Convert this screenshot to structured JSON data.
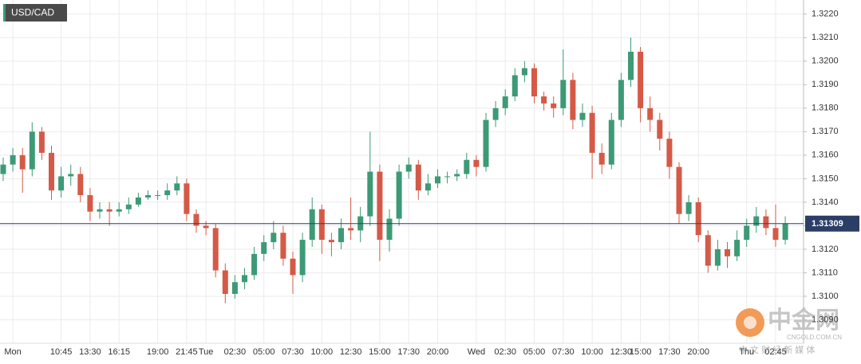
{
  "chart_data": {
    "type": "candlestick",
    "title": "USD/CAD",
    "categories": [
      null,
      "Mon",
      null,
      null,
      null,
      null,
      "10:45",
      null,
      null,
      "13:30",
      null,
      null,
      "16:15",
      null,
      null,
      null,
      "19:00",
      null,
      null,
      "21:45",
      null,
      "Tue",
      null,
      null,
      "02:30",
      null,
      null,
      "05:00",
      null,
      null,
      "07:30",
      null,
      null,
      "10:00",
      null,
      null,
      "12:30",
      null,
      null,
      "15:00",
      null,
      null,
      "17:30",
      null,
      null,
      "20:00",
      null,
      null,
      null,
      "Wed",
      null,
      null,
      "02:30",
      null,
      null,
      "05:00",
      null,
      null,
      "07:30",
      null,
      null,
      "10:00",
      null,
      null,
      "12:30",
      null,
      "15:00",
      null,
      null,
      "17:30",
      null,
      null,
      "20:00",
      null,
      null,
      null,
      null,
      "Thu",
      null,
      null,
      "02:45",
      null
    ],
    "open": [
      1.3152,
      1.3156,
      1.316,
      1.3154,
      1.317,
      1.3161,
      1.3145,
      1.3151,
      1.3152,
      1.3143,
      1.3136,
      1.3137,
      1.3136,
      1.3137,
      1.3139,
      1.3142,
      1.3143,
      1.3143,
      1.3145,
      1.3148,
      1.3135,
      1.313,
      1.3129,
      1.3111,
      1.3101,
      1.3106,
      1.3109,
      1.3118,
      1.3123,
      1.3127,
      1.3116,
      1.3109,
      1.3124,
      1.3137,
      1.3124,
      1.3123,
      1.3129,
      1.3128,
      1.3134,
      1.3153,
      1.3124,
      1.3133,
      1.3153,
      1.3156,
      1.3145,
      1.3148,
      1.3151,
      1.3151,
      1.3152,
      1.3158,
      1.3155,
      1.3175,
      1.318,
      1.3185,
      1.3194,
      1.3197,
      1.3185,
      1.3182,
      1.318,
      1.3192,
      1.3175,
      1.3178,
      1.3161,
      1.3156,
      1.3175,
      1.3192,
      1.3204,
      1.318,
      1.3175,
      1.3167,
      1.3155,
      1.3135,
      1.314,
      1.3126,
      1.3113,
      1.312,
      1.3117,
      1.3124,
      1.313,
      1.3134,
      1.3129,
      1.3124
    ],
    "high": [
      1.3159,
      1.3163,
      1.3163,
      1.3174,
      1.3172,
      1.3164,
      1.3155,
      1.3156,
      1.3155,
      1.3146,
      1.314,
      1.314,
      1.314,
      1.3142,
      1.3144,
      1.3145,
      1.3145,
      1.3148,
      1.3151,
      1.315,
      1.3137,
      1.3132,
      1.3131,
      1.3114,
      1.3109,
      1.3112,
      1.3121,
      1.3126,
      1.3132,
      1.313,
      1.3119,
      1.3127,
      1.3142,
      1.3139,
      1.3127,
      1.3133,
      1.3142,
      1.3138,
      1.317,
      1.3156,
      1.3137,
      1.3156,
      1.3159,
      1.3158,
      1.3152,
      1.3154,
      1.3153,
      1.3154,
      1.3161,
      1.316,
      1.3178,
      1.3183,
      1.3188,
      1.3197,
      1.32,
      1.3199,
      1.3187,
      1.3185,
      1.3205,
      1.3195,
      1.3182,
      1.3181,
      1.3165,
      1.3178,
      1.3195,
      1.321,
      1.3206,
      1.3185,
      1.3178,
      1.317,
      1.3157,
      1.3143,
      1.3142,
      1.3128,
      1.3124,
      1.3123,
      1.3128,
      1.3133,
      1.3138,
      1.3137,
      1.3139,
      1.3134
    ],
    "low": [
      1.3149,
      1.3153,
      1.3144,
      1.3151,
      1.3158,
      1.3141,
      1.3142,
      1.3147,
      1.314,
      1.3132,
      1.3133,
      1.313,
      1.3134,
      1.3135,
      1.3138,
      1.3141,
      1.3141,
      1.3141,
      1.3143,
      1.3132,
      1.3127,
      1.3126,
      1.3108,
      1.3097,
      1.3099,
      1.3103,
      1.3107,
      1.3115,
      1.312,
      1.3113,
      1.3101,
      1.3106,
      1.3121,
      1.3118,
      1.3117,
      1.312,
      1.3124,
      1.3123,
      1.313,
      1.3115,
      1.3119,
      1.313,
      1.315,
      1.3141,
      1.3143,
      1.3146,
      1.3148,
      1.3149,
      1.315,
      1.3151,
      1.3153,
      1.3172,
      1.3177,
      1.3183,
      1.3191,
      1.3182,
      1.3179,
      1.3176,
      1.3177,
      1.3171,
      1.3172,
      1.315,
      1.3152,
      1.3154,
      1.3172,
      1.3189,
      1.3174,
      1.317,
      1.3162,
      1.315,
      1.3131,
      1.3132,
      1.3123,
      1.311,
      1.3111,
      1.3112,
      1.3115,
      1.3121,
      1.3127,
      1.3126,
      1.3121,
      1.3122
    ],
    "close": [
      1.3156,
      1.316,
      1.3154,
      1.317,
      1.3161,
      1.3145,
      1.3151,
      1.3152,
      1.3143,
      1.3136,
      1.3137,
      1.3136,
      1.3137,
      1.3139,
      1.3142,
      1.3143,
      1.3143,
      1.3145,
      1.3148,
      1.3135,
      1.313,
      1.3129,
      1.3111,
      1.3101,
      1.3106,
      1.3109,
      1.3118,
      1.3123,
      1.3127,
      1.3116,
      1.3109,
      1.3124,
      1.3137,
      1.3124,
      1.3123,
      1.3129,
      1.3128,
      1.3134,
      1.3153,
      1.3124,
      1.3133,
      1.3153,
      1.3156,
      1.3145,
      1.3148,
      1.3151,
      1.3151,
      1.3152,
      1.3158,
      1.3155,
      1.3175,
      1.318,
      1.3185,
      1.3194,
      1.3197,
      1.3185,
      1.3182,
      1.318,
      1.3192,
      1.3175,
      1.3178,
      1.3161,
      1.3156,
      1.3175,
      1.3192,
      1.3204,
      1.318,
      1.3175,
      1.3167,
      1.3155,
      1.3135,
      1.314,
      1.3126,
      1.3113,
      1.312,
      1.3117,
      1.3124,
      1.313,
      1.3134,
      1.3129,
      1.3124,
      1.3131
    ],
    "up_color": "#3d9a76",
    "down_color": "#d45a47",
    "last_price": 1.31309,
    "ylim": [
      1.308,
      1.3226
    ],
    "yticks": [
      {
        "value": 1.309,
        "label": "1.3090"
      },
      {
        "value": 1.31,
        "label": "1.3100"
      },
      {
        "value": 1.311,
        "label": "1.3110"
      },
      {
        "value": 1.312,
        "label": "1.3120"
      },
      {
        "value": 1.313,
        "label": "1.3130"
      },
      {
        "value": 1.314,
        "label": "1.3140"
      },
      {
        "value": 1.315,
        "label": "1.3150"
      },
      {
        "value": 1.316,
        "label": "1.3160"
      },
      {
        "value": 1.317,
        "label": "1.3170"
      },
      {
        "value": 1.318,
        "label": "1.3180"
      },
      {
        "value": 1.319,
        "label": "1.3190"
      },
      {
        "value": 1.32,
        "label": "1.3200"
      },
      {
        "value": 1.321,
        "label": "1.3210"
      },
      {
        "value": 1.322,
        "label": "1.3220"
      }
    ],
    "grid": true
  },
  "watermark": {
    "brand": "中金网",
    "site": "CNGOLD.COM.CN",
    "slogan": "中 文 财 经 新 媒 体"
  }
}
